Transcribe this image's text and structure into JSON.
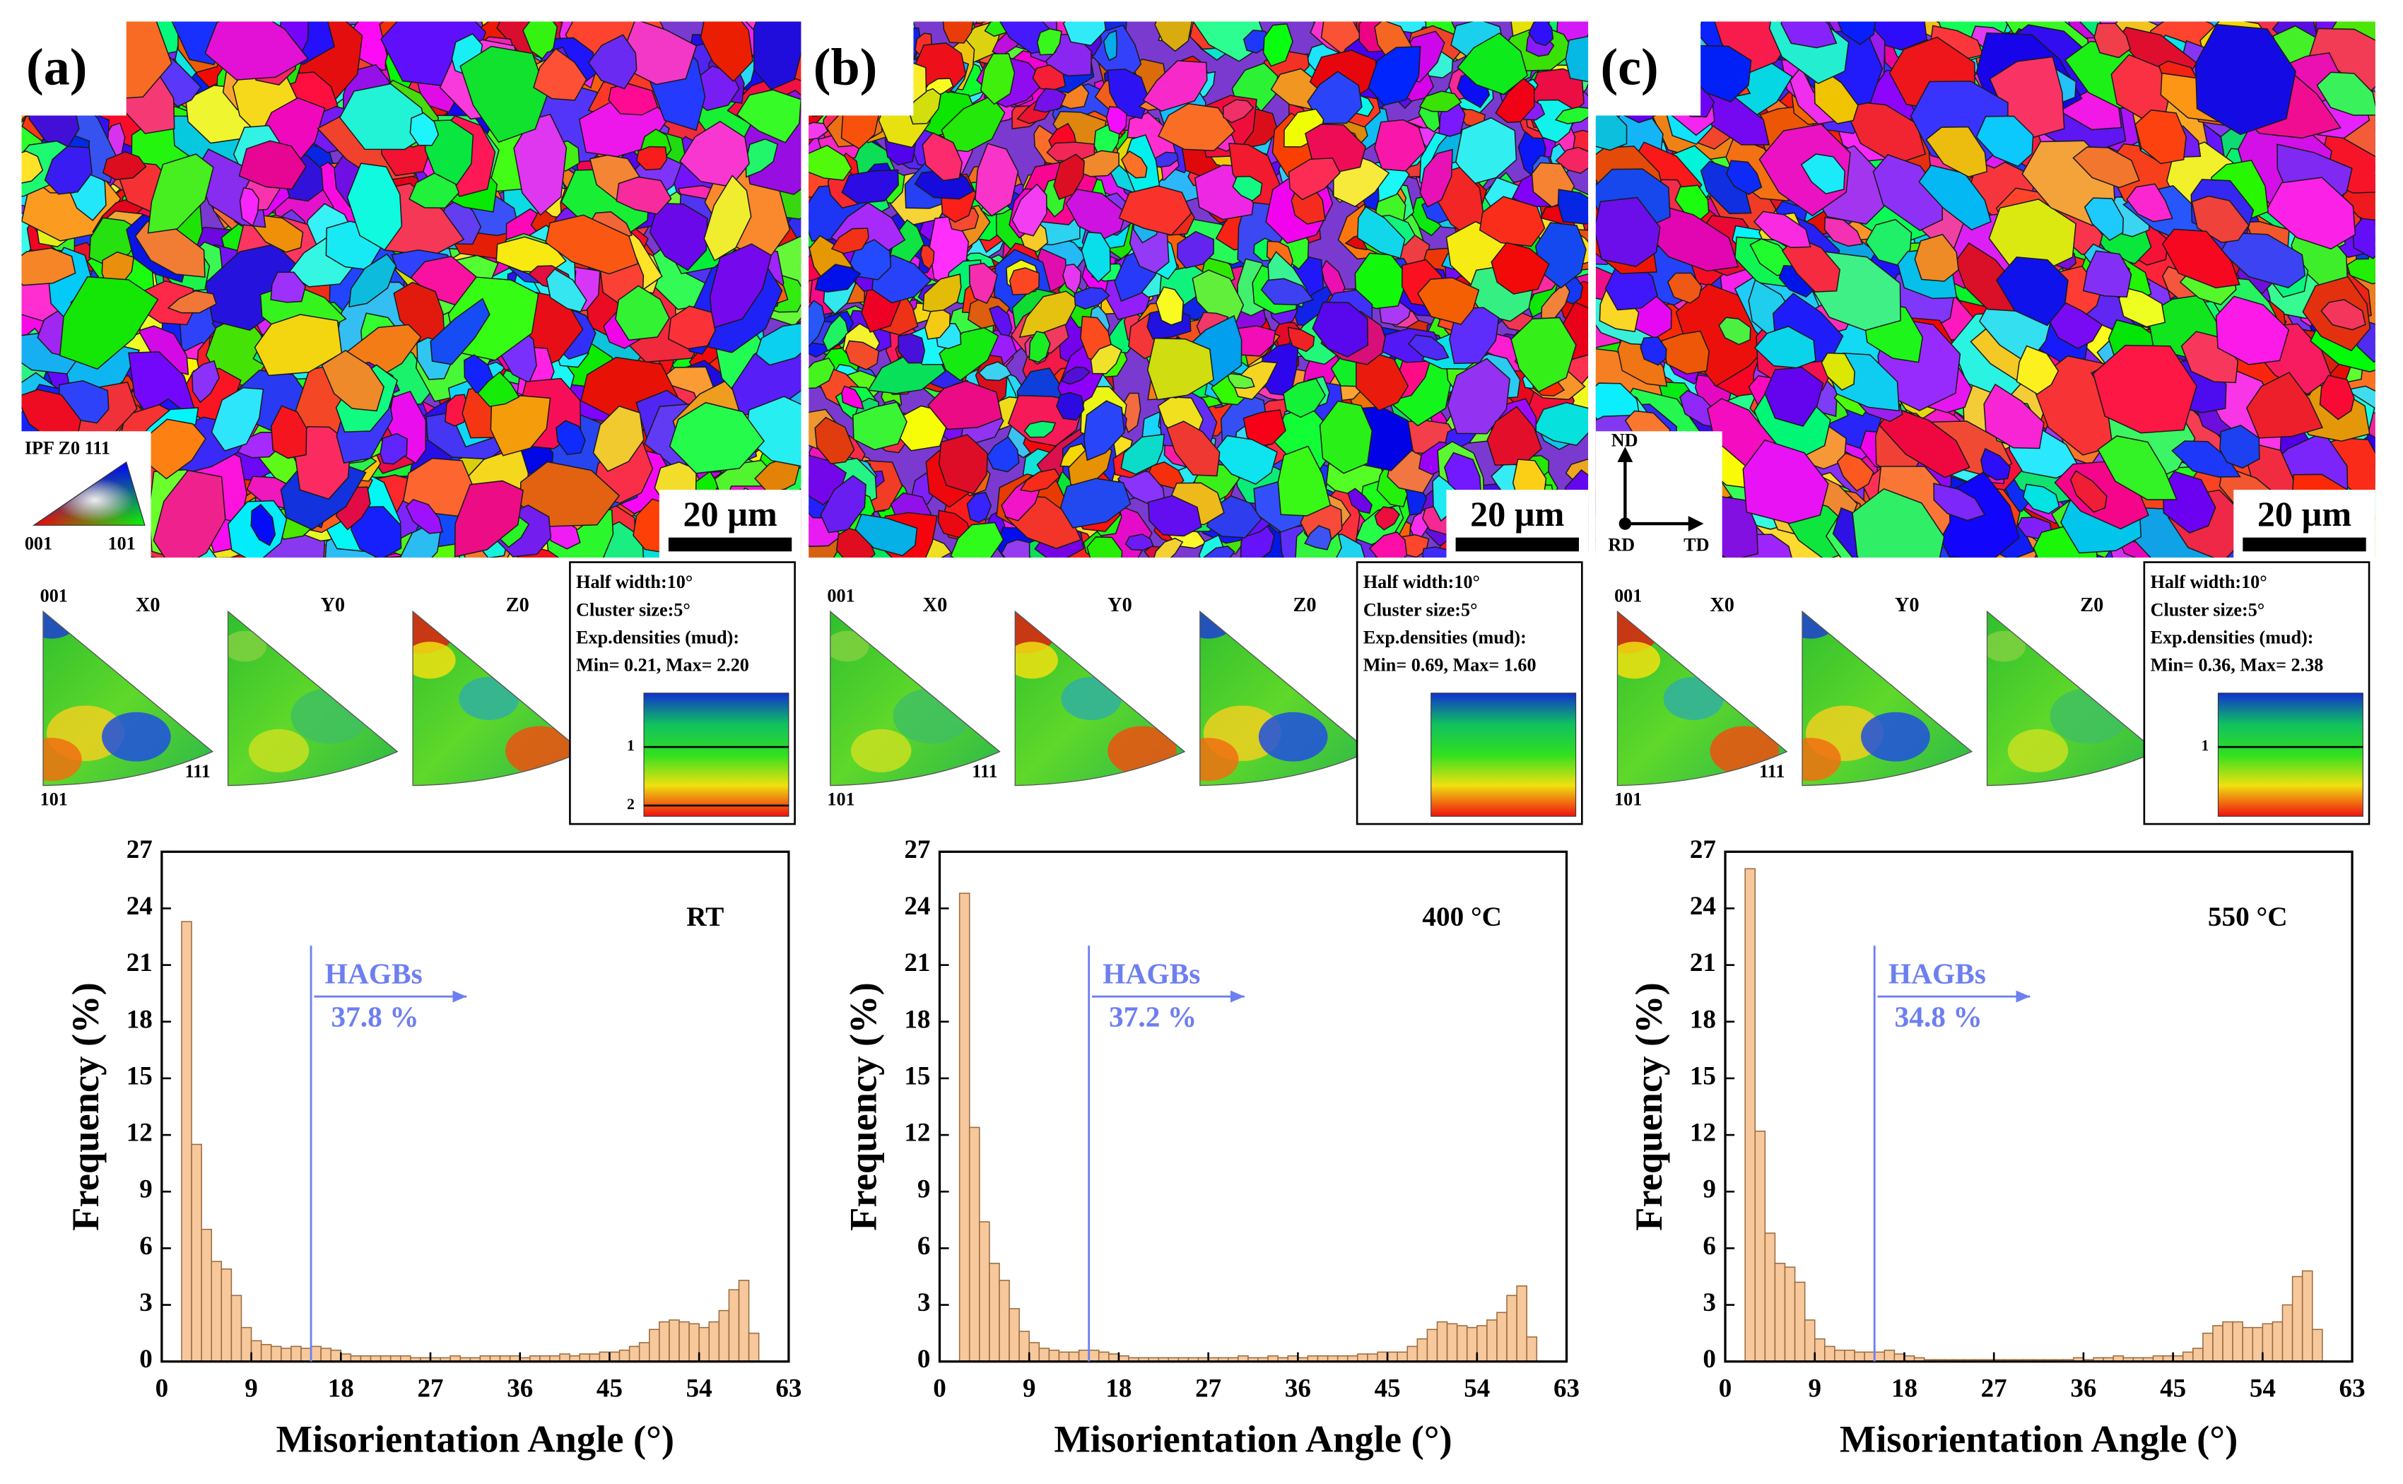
{
  "panels": [
    {
      "label": "(a)",
      "scale_bar": "20 µm",
      "ipf_key": {
        "title": "IPF Z0 111",
        "corners": [
          "001",
          "101"
        ]
      },
      "pole_figures": {
        "corner_labels": [
          "001",
          "101",
          "111"
        ],
        "titles": [
          "X0",
          "Y0",
          "Z0"
        ],
        "info": [
          "Half width:10°",
          "Cluster size:5°",
          "Exp.densities (mud):",
          "Min= 0.21, Max= 2.20"
        ],
        "colorbar_ticks": [
          "1",
          "2"
        ]
      }
    },
    {
      "label": "(b)",
      "scale_bar": "20 µm",
      "pole_figures": {
        "corner_labels": [
          "001",
          "101",
          "111"
        ],
        "titles": [
          "X0",
          "Y0",
          "Z0"
        ],
        "info": [
          "Half width:10°",
          "Cluster size:5°",
          "Exp.densities (mud):",
          "Min= 0.69, Max= 1.60"
        ],
        "colorbar_ticks": []
      }
    },
    {
      "label": "(c)",
      "scale_bar": "20 µm",
      "axes": [
        "ND",
        "RD",
        "TD"
      ],
      "pole_figures": {
        "corner_labels": [
          "001",
          "101",
          "111"
        ],
        "titles": [
          "X0",
          "Y0",
          "Z0"
        ],
        "info": [
          "Half width:10°",
          "Cluster size:5°",
          "Exp.densities (mud):",
          "Min= 0.36, Max= 2.38"
        ],
        "colorbar_ticks": [
          "1"
        ]
      }
    }
  ],
  "chart_data": [
    {
      "type": "histogram",
      "xlabel": "Misorientation Angle (°)",
      "ylabel": "Frequency (%)",
      "annotation": "RT",
      "hagb_label": "HAGBs",
      "hagb_value": "37.8 %",
      "hagb_threshold": 15,
      "color": "#f6c89c",
      "bins": [
        2,
        3,
        4,
        5,
        6,
        7,
        8,
        9,
        10,
        11,
        12,
        13,
        14,
        15,
        16,
        17,
        18,
        19,
        20,
        21,
        22,
        23,
        24,
        25,
        26,
        27,
        28,
        29,
        30,
        31,
        32,
        33,
        34,
        35,
        36,
        37,
        38,
        39,
        40,
        41,
        42,
        43,
        44,
        45,
        46,
        47,
        48,
        49,
        50,
        51,
        52,
        53,
        54,
        55,
        56,
        57,
        58,
        59,
        60
      ],
      "values": [
        23.3,
        11.5,
        7.0,
        5.3,
        4.9,
        3.5,
        1.8,
        1.1,
        0.9,
        0.8,
        0.7,
        0.8,
        0.7,
        0.8,
        0.7,
        0.6,
        0.4,
        0.3,
        0.3,
        0.3,
        0.3,
        0.3,
        0.3,
        0.2,
        0.2,
        0.2,
        0.2,
        0.3,
        0.2,
        0.2,
        0.3,
        0.3,
        0.3,
        0.3,
        0.2,
        0.3,
        0.3,
        0.3,
        0.4,
        0.3,
        0.4,
        0.4,
        0.5,
        0.5,
        0.6,
        0.8,
        1.0,
        1.7,
        2.1,
        2.2,
        2.1,
        2.0,
        1.8,
        2.1,
        2.7,
        3.8,
        4.3,
        1.5
      ],
      "xlim": [
        0,
        63
      ],
      "ylim": [
        0,
        27
      ],
      "xticks": [
        0,
        9,
        18,
        27,
        36,
        45,
        54,
        63
      ],
      "yticks": [
        0,
        3,
        6,
        9,
        12,
        15,
        18,
        21,
        24,
        27
      ]
    },
    {
      "type": "histogram",
      "xlabel": "Misorientation Angle (°)",
      "ylabel": "Frequency (%)",
      "annotation": "400 °C",
      "hagb_label": "HAGBs",
      "hagb_value": "37.2 %",
      "hagb_threshold": 15,
      "color": "#f6c89c",
      "bins": [
        2,
        3,
        4,
        5,
        6,
        7,
        8,
        9,
        10,
        11,
        12,
        13,
        14,
        15,
        16,
        17,
        18,
        19,
        20,
        21,
        22,
        23,
        24,
        25,
        26,
        27,
        28,
        29,
        30,
        31,
        32,
        33,
        34,
        35,
        36,
        37,
        38,
        39,
        40,
        41,
        42,
        43,
        44,
        45,
        46,
        47,
        48,
        49,
        50,
        51,
        52,
        53,
        54,
        55,
        56,
        57,
        58,
        59,
        60
      ],
      "values": [
        24.8,
        12.4,
        7.4,
        5.2,
        4.3,
        2.8,
        1.6,
        1.0,
        0.7,
        0.6,
        0.5,
        0.5,
        0.6,
        0.6,
        0.5,
        0.4,
        0.3,
        0.2,
        0.2,
        0.2,
        0.2,
        0.2,
        0.2,
        0.2,
        0.2,
        0.2,
        0.2,
        0.2,
        0.3,
        0.2,
        0.2,
        0.3,
        0.2,
        0.3,
        0.2,
        0.3,
        0.3,
        0.3,
        0.3,
        0.3,
        0.4,
        0.4,
        0.5,
        0.5,
        0.5,
        0.8,
        1.2,
        1.7,
        2.1,
        2.0,
        1.9,
        1.8,
        1.9,
        2.2,
        2.6,
        3.5,
        4.0,
        1.3
      ],
      "xlim": [
        0,
        63
      ],
      "ylim": [
        0,
        27
      ],
      "xticks": [
        0,
        9,
        18,
        27,
        36,
        45,
        54,
        63
      ],
      "yticks": [
        0,
        3,
        6,
        9,
        12,
        15,
        18,
        21,
        24,
        27
      ]
    },
    {
      "type": "histogram",
      "xlabel": "Misorientation Angle (°)",
      "ylabel": "Frequency (%)",
      "annotation": "550 °C",
      "hagb_label": "HAGBs",
      "hagb_value": "34.8 %",
      "hagb_threshold": 15,
      "color": "#f6c89c",
      "bins": [
        2,
        3,
        4,
        5,
        6,
        7,
        8,
        9,
        10,
        11,
        12,
        13,
        14,
        15,
        16,
        17,
        18,
        19,
        20,
        21,
        22,
        23,
        24,
        25,
        26,
        27,
        28,
        29,
        30,
        31,
        32,
        33,
        34,
        35,
        36,
        37,
        38,
        39,
        40,
        41,
        42,
        43,
        44,
        45,
        46,
        47,
        48,
        49,
        50,
        51,
        52,
        53,
        54,
        55,
        56,
        57,
        58,
        59,
        60
      ],
      "values": [
        26.1,
        12.2,
        6.8,
        5.2,
        5.0,
        4.2,
        2.2,
        1.2,
        0.8,
        0.6,
        0.6,
        0.5,
        0.5,
        0.5,
        0.6,
        0.4,
        0.3,
        0.2,
        0.1,
        0.1,
        0.1,
        0.1,
        0.1,
        0.1,
        0.1,
        0.1,
        0.1,
        0.1,
        0.1,
        0.1,
        0.1,
        0.1,
        0.1,
        0.2,
        0.1,
        0.2,
        0.2,
        0.3,
        0.2,
        0.2,
        0.2,
        0.3,
        0.3,
        0.3,
        0.5,
        0.7,
        1.5,
        1.9,
        2.1,
        2.1,
        1.8,
        1.8,
        2.0,
        2.1,
        3.0,
        4.5,
        4.8,
        1.7
      ],
      "xlim": [
        0,
        63
      ],
      "ylim": [
        0,
        27
      ],
      "xticks": [
        0,
        9,
        18,
        27,
        36,
        45,
        54,
        63
      ],
      "yticks": [
        0,
        3,
        6,
        9,
        12,
        15,
        18,
        21,
        24,
        27
      ]
    }
  ]
}
